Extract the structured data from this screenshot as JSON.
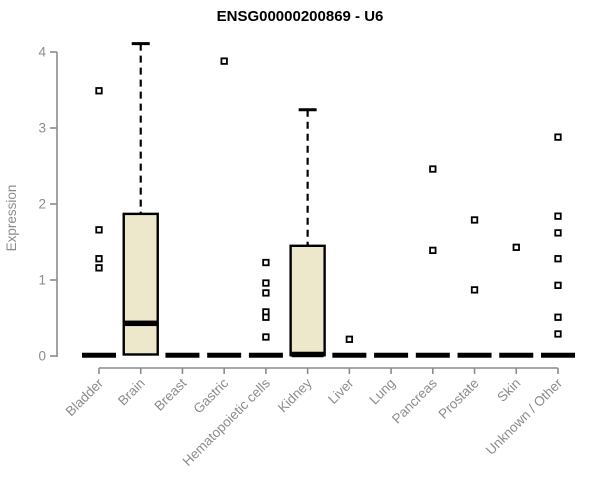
{
  "chart_data": {
    "type": "boxplot",
    "title": "ENSG00000200869 - U6",
    "ylabel": "Expression",
    "xlabel": "",
    "ylim": [
      0,
      4
    ],
    "yticks": [
      "0",
      "1",
      "2",
      "3",
      "4"
    ],
    "grid": false,
    "legend": "none",
    "box_fill": "#EDE7CC",
    "box_border": "#000000",
    "axis_color": "#8c8c8c",
    "label_color": "#8c8c8c",
    "title_color": "#000000",
    "categories": [
      "Bladder",
      "Brain",
      "Breast",
      "Gastric",
      "Hematopoietic cells",
      "Kidney",
      "Liver",
      "Lung",
      "Pancreas",
      "Prostate",
      "Skin",
      "Unknown / Other"
    ],
    "series": [
      {
        "label": "Bladder",
        "whisker_low": 0,
        "q1": 0,
        "median": 0.01,
        "q3": 0.02,
        "whisker_high": 0.02,
        "outliers": [
          3.49,
          1.66,
          1.28,
          1.16
        ]
      },
      {
        "label": "Brain",
        "whisker_low": 0,
        "q1": 0.02,
        "median": 0.43,
        "q3": 1.87,
        "whisker_high": 4.11,
        "outliers": []
      },
      {
        "label": "Breast",
        "whisker_low": 0,
        "q1": 0,
        "median": 0.01,
        "q3": 0.02,
        "whisker_high": 0.02,
        "outliers": []
      },
      {
        "label": "Gastric",
        "whisker_low": 0,
        "q1": 0,
        "median": 0.01,
        "q3": 0.02,
        "whisker_high": 0.02,
        "outliers": [
          3.88
        ]
      },
      {
        "label": "Hematopoietic cells",
        "whisker_low": 0,
        "q1": 0,
        "median": 0.01,
        "q3": 0.02,
        "whisker_high": 0.02,
        "outliers": [
          1.23,
          0.96,
          0.83,
          0.58,
          0.51,
          0.25
        ]
      },
      {
        "label": "Kidney",
        "whisker_low": 0,
        "q1": 0.01,
        "median": 0.02,
        "q3": 1.45,
        "whisker_high": 3.24,
        "outliers": []
      },
      {
        "label": "Liver",
        "whisker_low": 0,
        "q1": 0,
        "median": 0.01,
        "q3": 0.02,
        "whisker_high": 0.02,
        "outliers": [
          0.22
        ]
      },
      {
        "label": "Lung",
        "whisker_low": 0,
        "q1": 0,
        "median": 0.01,
        "q3": 0.02,
        "whisker_high": 0.02,
        "outliers": []
      },
      {
        "label": "Pancreas",
        "whisker_low": 0,
        "q1": 0,
        "median": 0.01,
        "q3": 0.02,
        "whisker_high": 0.02,
        "outliers": [
          2.46,
          1.39
        ]
      },
      {
        "label": "Prostate",
        "whisker_low": 0,
        "q1": 0,
        "median": 0.01,
        "q3": 0.02,
        "whisker_high": 0.02,
        "outliers": [
          1.79,
          0.87
        ]
      },
      {
        "label": "Skin",
        "whisker_low": 0,
        "q1": 0,
        "median": 0.01,
        "q3": 0.02,
        "whisker_high": 0.02,
        "outliers": [
          1.43
        ]
      },
      {
        "label": "Unknown / Other",
        "whisker_low": 0,
        "q1": 0,
        "median": 0.01,
        "q3": 0.02,
        "whisker_high": 0.02,
        "outliers": [
          2.88,
          1.84,
          1.62,
          1.28,
          0.93,
          0.51,
          0.29
        ]
      }
    ]
  }
}
